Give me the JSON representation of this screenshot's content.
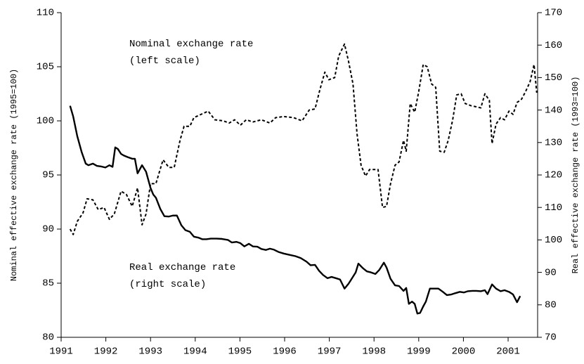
{
  "chart_data": {
    "type": "line",
    "y_label": "Nominal effective exchange rate (1995=100)",
    "y2_label": "Real effective exchange rate (1993=100)",
    "annotations": [
      "Nominal exchange rate",
      "(left scale)",
      "Real exchange rate",
      "(right scale)"
    ],
    "xlim": [
      1991,
      2001.66
    ],
    "xticks": [
      1991,
      1992,
      1993,
      1994,
      1995,
      1996,
      1997,
      1998,
      1999,
      2000,
      2001
    ],
    "ylim": [
      80,
      110
    ],
    "yticks": [
      80,
      85,
      90,
      95,
      100,
      105,
      110
    ],
    "y2lim": [
      70,
      170
    ],
    "y2ticks": [
      70,
      80,
      90,
      100,
      110,
      120,
      130,
      140,
      150,
      160,
      170
    ],
    "series": [
      {
        "name": "Nominal exchange rate",
        "color": "#000000",
        "line_style": "dashed",
        "x": [
          1991.2,
          1991.27,
          1991.36,
          1991.49,
          1991.58,
          1991.71,
          1991.83,
          1991.96,
          1992.08,
          1992.19,
          1992.34,
          1992.46,
          1992.59,
          1992.71,
          1992.81,
          1992.9,
          1993.0,
          1993.12,
          1993.28,
          1993.41,
          1993.53,
          1993.66,
          1993.75,
          1993.88,
          1993.97,
          1994.13,
          1994.29,
          1994.44,
          1994.63,
          1994.76,
          1994.88,
          1995.01,
          1995.14,
          1995.29,
          1995.48,
          1995.67,
          1995.8,
          1995.98,
          1996.2,
          1996.39,
          1996.55,
          1996.68,
          1996.79,
          1996.9,
          1996.99,
          1997.12,
          1997.21,
          1997.34,
          1997.43,
          1997.53,
          1997.62,
          1997.71,
          1997.81,
          1997.9,
          1998.0,
          1998.09,
          1998.19,
          1998.28,
          1998.37,
          1998.47,
          1998.56,
          1998.66,
          1998.72,
          1998.81,
          1998.91,
          1999.0,
          1999.1,
          1999.19,
          1999.29,
          1999.38,
          1999.47,
          1999.57,
          1999.66,
          1999.76,
          1999.85,
          1999.95,
          2000.04,
          2000.17,
          2000.29,
          2000.39,
          2000.48,
          2000.58,
          2000.64,
          2000.73,
          2000.83,
          2000.92,
          2001.02,
          2001.11,
          2001.2,
          2001.3,
          2001.39,
          2001.49,
          2001.58,
          2001.64
        ],
        "values": [
          90.0,
          89.5,
          90.7,
          91.5,
          92.8,
          92.7,
          91.8,
          92.0,
          90.9,
          91.4,
          93.5,
          93.2,
          92.1,
          93.8,
          90.4,
          91.4,
          94.2,
          94.2,
          96.4,
          95.7,
          95.7,
          98.2,
          99.5,
          99.5,
          100.3,
          100.6,
          100.9,
          100.1,
          100.0,
          99.8,
          100.1,
          99.6,
          100.1,
          99.9,
          100.1,
          99.8,
          100.3,
          100.4,
          100.3,
          100.0,
          101.0,
          101.1,
          102.9,
          104.5,
          103.8,
          104.0,
          106.0,
          107.1,
          105.5,
          103.4,
          98.8,
          95.9,
          94.9,
          95.5,
          95.5,
          95.5,
          92.0,
          92.1,
          94.2,
          95.9,
          96.2,
          98.2,
          97.2,
          101.6,
          100.8,
          102.7,
          105.2,
          105.0,
          103.4,
          103.1,
          97.2,
          97.1,
          98.2,
          100.1,
          102.4,
          102.5,
          101.6,
          101.4,
          101.3,
          101.2,
          102.5,
          101.9,
          97.9,
          99.7,
          100.3,
          100.1,
          100.9,
          100.6,
          101.7,
          102.0,
          102.7,
          103.6,
          105.2,
          102.6
        ]
      },
      {
        "name": "Real exchange rate",
        "color": "#000000",
        "line_style": "solid",
        "axis": "y2",
        "x": [
          1991.2,
          1991.27,
          1991.36,
          1991.46,
          1991.55,
          1991.61,
          1991.71,
          1991.8,
          1991.9,
          1991.99,
          1992.08,
          1992.15,
          1992.21,
          1992.27,
          1992.34,
          1992.4,
          1992.49,
          1992.59,
          1992.65,
          1992.71,
          1992.81,
          1992.9,
          1993.0,
          1993.06,
          1993.12,
          1993.22,
          1993.31,
          1993.41,
          1993.5,
          1993.59,
          1993.69,
          1993.78,
          1993.88,
          1993.97,
          1994.07,
          1994.16,
          1994.25,
          1994.35,
          1994.48,
          1994.6,
          1994.73,
          1994.82,
          1994.92,
          1995.01,
          1995.1,
          1995.2,
          1995.29,
          1995.39,
          1995.48,
          1995.58,
          1995.67,
          1995.76,
          1995.86,
          1995.98,
          1996.11,
          1996.24,
          1996.36,
          1996.49,
          1996.58,
          1996.68,
          1996.77,
          1996.86,
          1996.96,
          1997.05,
          1997.15,
          1997.24,
          1997.34,
          1997.43,
          1997.49,
          1997.59,
          1997.65,
          1997.75,
          1997.84,
          1997.93,
          1998.03,
          1998.12,
          1998.22,
          1998.28,
          1998.37,
          1998.47,
          1998.56,
          1998.66,
          1998.72,
          1998.78,
          1998.85,
          1998.91,
          1998.97,
          1999.03,
          1999.1,
          1999.16,
          1999.25,
          1999.35,
          1999.44,
          1999.54,
          1999.63,
          1999.73,
          1999.82,
          1999.92,
          2000.01,
          2000.1,
          2000.2,
          2000.29,
          2000.39,
          2000.48,
          2000.54,
          2000.64,
          2000.73,
          2000.83,
          2000.92,
          2001.02,
          2001.11,
          2001.2,
          2001.27
        ],
        "values": [
          141.3,
          138,
          132,
          127,
          123.5,
          123,
          123.5,
          122.8,
          122.6,
          122.3,
          123,
          122.5,
          128.5,
          128,
          126.5,
          126,
          125.5,
          125,
          125,
          120.5,
          123,
          121,
          116,
          114,
          113,
          109.5,
          107.3,
          107.2,
          107.5,
          107.5,
          104.5,
          103,
          102.5,
          101,
          100.7,
          100.2,
          100.2,
          100.4,
          100.4,
          100.3,
          100,
          99.2,
          99.4,
          99,
          98,
          98.8,
          98,
          97.9,
          97.2,
          96.9,
          97.3,
          97,
          96.3,
          95.8,
          95.4,
          95,
          94.4,
          93.3,
          92.2,
          92.3,
          90.5,
          89.2,
          88.2,
          88.6,
          88.2,
          87.8,
          85,
          86.5,
          87.8,
          90,
          92.7,
          91.3,
          90.3,
          90,
          89.5,
          90.8,
          93,
          91.5,
          88,
          86,
          85.8,
          84.3,
          85.2,
          80.3,
          81,
          80.3,
          77.3,
          77.5,
          79.5,
          81,
          85,
          85,
          85,
          84,
          83,
          83.2,
          83.6,
          84,
          83.8,
          84.2,
          84.3,
          84.3,
          84.2,
          84.5,
          83.3,
          86.3,
          85,
          84.2,
          84.5,
          84,
          83.2,
          80.8,
          82.7
        ]
      }
    ]
  }
}
